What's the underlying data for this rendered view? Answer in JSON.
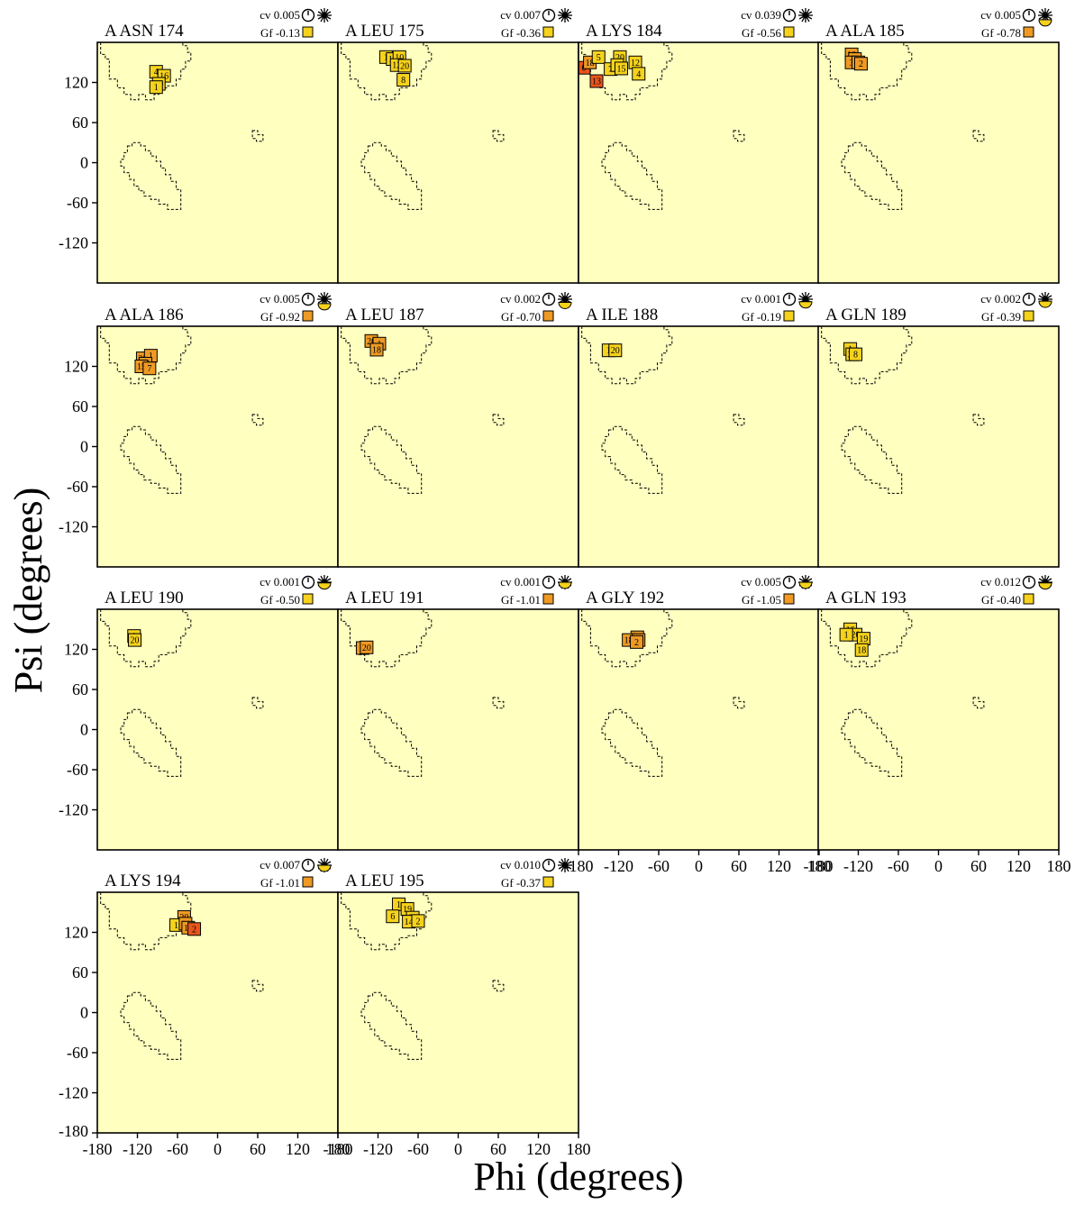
{
  "chart_data": {
    "type": "scatter",
    "xlabel": "Phi (degrees)",
    "ylabel": "Psi (degrees)",
    "xlim": [
      -180,
      180
    ],
    "ylim": [
      -180,
      180
    ],
    "x_ticks": [
      "-180",
      "-120",
      "-60",
      "0",
      "60",
      "120",
      "180"
    ],
    "y_ticks": [
      "120",
      "60",
      "0",
      "-60",
      "-120",
      "-180"
    ],
    "region_outline": "dashed",
    "grid": false,
    "panels": [
      {
        "title": "A ASN 174",
        "cv": "cv 0.005",
        "gf": "Gf -0.13",
        "gf_color": "#f5d21c",
        "points": [
          [
            -92,
            136,
            "4",
            "#f5d21c"
          ],
          [
            -80,
            130,
            "16",
            "#f5d21c"
          ],
          [
            -88,
            118,
            "20",
            "#f5d21c"
          ],
          [
            -92,
            113,
            "1",
            "#f5d21c"
          ]
        ]
      },
      {
        "title": "A LEU 175",
        "cv": "cv 0.007",
        "gf": "Gf -0.36",
        "gf_color": "#f5d21c",
        "points": [
          [
            -108,
            158,
            "1",
            "#f5d21c"
          ],
          [
            -98,
            155,
            "19",
            "#f5d21c"
          ],
          [
            -88,
            158,
            "10",
            "#f5d21c"
          ],
          [
            -92,
            146,
            "12",
            "#f5d21c"
          ],
          [
            -80,
            145,
            "20",
            "#f5d21c"
          ],
          [
            -82,
            124,
            "8",
            "#f5d21c"
          ]
        ]
      },
      {
        "title": "A LYS 184",
        "cv": "cv 0.039",
        "gf": "Gf -0.56",
        "gf_color": "#f5d21c",
        "points": [
          [
            -172,
            142,
            "6",
            "#e8561c"
          ],
          [
            -163,
            150,
            "18",
            "#ee9a24"
          ],
          [
            -150,
            158,
            "5",
            "#f5d21c"
          ],
          [
            -132,
            140,
            "7",
            "#f5d21c"
          ],
          [
            -118,
            158,
            "20",
            "#f5d21c"
          ],
          [
            -122,
            146,
            "9",
            "#f5d21c"
          ],
          [
            -116,
            141,
            "15",
            "#f5d21c"
          ],
          [
            -95,
            150,
            "12",
            "#f5d21c"
          ],
          [
            -90,
            133,
            "4",
            "#f5d21c"
          ],
          [
            -153,
            122,
            "13",
            "#e8561c"
          ]
        ]
      },
      {
        "title": "A ALA 185",
        "cv": "cv 0.005",
        "gf": "Gf -0.78",
        "gf_color": "#ee9a24",
        "points": [
          [
            -130,
            162,
            "18",
            "#ee9a24"
          ],
          [
            -125,
            155,
            "20",
            "#ee9a24"
          ],
          [
            -130,
            150,
            "3",
            "#ee9a24"
          ],
          [
            -120,
            150,
            "19",
            "#ee9a24"
          ],
          [
            -116,
            148,
            "2",
            "#ee9a24"
          ]
        ]
      },
      {
        "title": "A ALA 186",
        "cv": "cv 0.005",
        "gf": "Gf -0.92",
        "gf_color": "#ee9a24",
        "points": [
          [
            -112,
            132,
            "20",
            "#ee9a24"
          ],
          [
            -100,
            136,
            "1",
            "#ee9a24"
          ],
          [
            -108,
            124,
            "18",
            "#ee9a24"
          ],
          [
            -114,
            120,
            "15",
            "#ee9a24"
          ],
          [
            -102,
            117,
            "7",
            "#ee9a24"
          ]
        ]
      },
      {
        "title": "A LEU 187",
        "cv": "cv 0.002",
        "gf": "Gf -0.70",
        "gf_color": "#ee9a24",
        "points": [
          [
            -130,
            158,
            "20",
            "#ee9a24"
          ],
          [
            -118,
            154,
            "1",
            "#ee9a24"
          ],
          [
            -122,
            145,
            "18",
            "#ee9a24"
          ]
        ]
      },
      {
        "title": "A ILE 188",
        "cv": "cv 0.001",
        "gf": "Gf -0.19",
        "gf_color": "#f5d21c",
        "points": [
          [
            -135,
            144,
            "1",
            "#f5d21c"
          ],
          [
            -125,
            144,
            "20",
            "#f5d21c"
          ]
        ]
      },
      {
        "title": "A GLN 189",
        "cv": "cv 0.002",
        "gf": "Gf -0.39",
        "gf_color": "#f5d21c",
        "points": [
          [
            -132,
            146,
            "1",
            "#f5d21c"
          ],
          [
            -129,
            138,
            "20",
            "#f5d21c"
          ],
          [
            -124,
            138,
            "8",
            "#f5d21c"
          ]
        ]
      },
      {
        "title": "A LEU 190",
        "cv": "cv 0.001",
        "gf": "Gf -0.50",
        "gf_color": "#f5d21c",
        "points": [
          [
            -125,
            140,
            "1",
            "#f5d21c"
          ],
          [
            -124,
            134,
            "20",
            "#f5d21c"
          ]
        ]
      },
      {
        "title": "A LEU 191",
        "cv": "cv 0.001",
        "gf": "Gf -1.01",
        "gf_color": "#ee9a24",
        "points": [
          [
            -143,
            122,
            "1",
            "#ee9a24"
          ],
          [
            -137,
            123,
            "20",
            "#ee9a24"
          ]
        ]
      },
      {
        "title": "A GLY 192",
        "cv": "cv 0.005",
        "gf": "Gf -1.05",
        "gf_color": "#ee9a24",
        "points": [
          [
            -92,
            138,
            "1",
            "#ee9a24"
          ],
          [
            -105,
            134,
            "18",
            "#ee9a24"
          ],
          [
            -90,
            134,
            "20",
            "#ee9a24"
          ],
          [
            -93,
            131,
            "2",
            "#ee9a24"
          ]
        ]
      },
      {
        "title": "A GLN 193",
        "cv": "cv 0.012",
        "gf": "Gf -0.40",
        "gf_color": "#f5d21c",
        "points": [
          [
            -132,
            150,
            "16",
            "#f5d21c"
          ],
          [
            -124,
            142,
            "20",
            "#f5d21c"
          ],
          [
            -138,
            142,
            "1",
            "#f5d21c"
          ],
          [
            -112,
            136,
            "19",
            "#f5d21c"
          ],
          [
            -115,
            119,
            "18",
            "#f5d21c"
          ]
        ]
      },
      {
        "title": "A LYS 194",
        "cv": "cv 0.007",
        "gf": "Gf -1.01",
        "gf_color": "#ee9a24",
        "points": [
          [
            -50,
            143,
            "20",
            "#ee9a24"
          ],
          [
            -62,
            131,
            "1",
            "#f5d21c"
          ],
          [
            -48,
            133,
            "11",
            "#ee9a24"
          ],
          [
            -44,
            127,
            "16",
            "#ee9a24"
          ],
          [
            -35,
            125,
            "2",
            "#e8561c"
          ]
        ]
      },
      {
        "title": "A LEU 195",
        "cv": "cv 0.010",
        "gf": "Gf -0.37",
        "gf_color": "#f5d21c",
        "points": [
          [
            -89,
            162,
            "1",
            "#f5d21c"
          ],
          [
            -76,
            155,
            "19",
            "#f5d21c"
          ],
          [
            -98,
            144,
            "6",
            "#f5d21c"
          ],
          [
            -68,
            142,
            "20",
            "#f5d21c"
          ],
          [
            -74,
            136,
            "14",
            "#f5d21c"
          ],
          [
            -60,
            137,
            "2",
            "#f5d21c"
          ]
        ]
      }
    ]
  }
}
